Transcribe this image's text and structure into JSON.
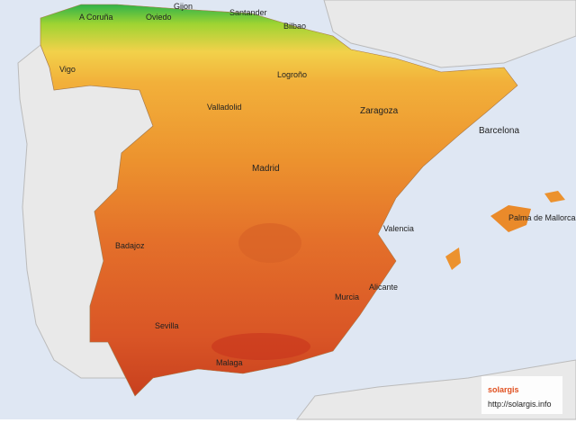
{
  "cities": [
    "A Coruña",
    "Oviedo",
    "Gijon",
    "Santander",
    "Bilbao",
    "Vigo",
    "Logroño",
    "Valladolid",
    "Zaragoza",
    "Barcelona",
    "Madrid",
    "Valencia",
    "Palma de Mallorca",
    "Badajoz",
    "Alicante",
    "Murcia",
    "Sevilla",
    "Malaga"
  ],
  "logo": {
    "name": "solargis",
    "url": "http://solargis.info"
  }
}
